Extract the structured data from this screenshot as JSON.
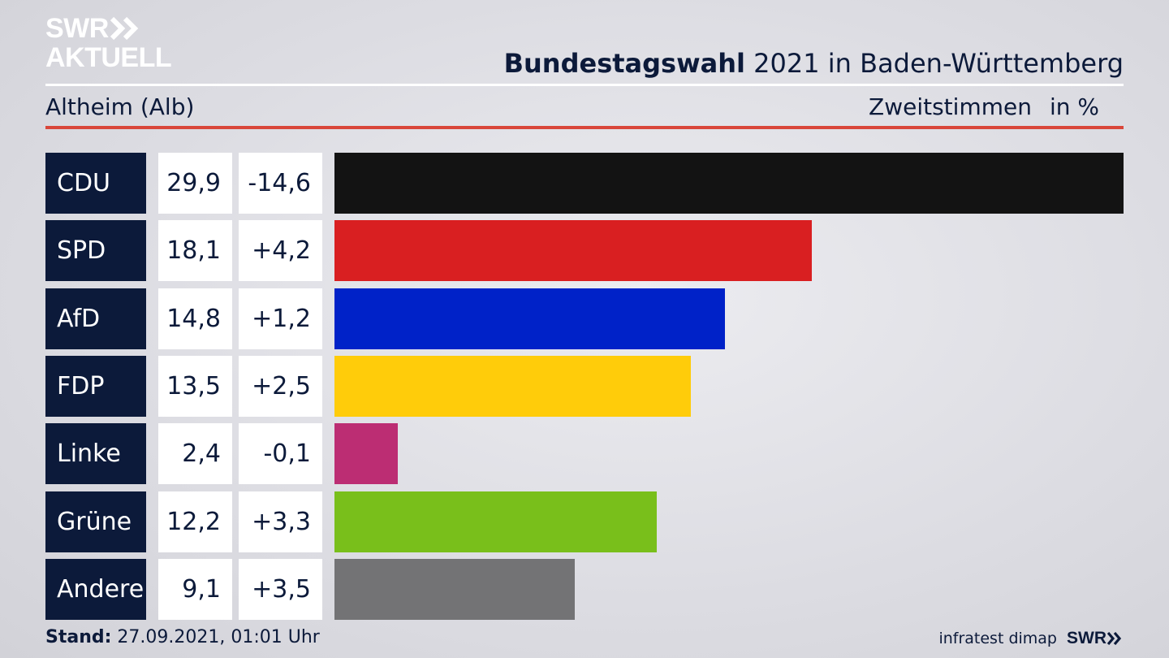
{
  "logo": {
    "line1": "SWR",
    "line2": "AKTUELL"
  },
  "header": {
    "title_bold": "Bundestagswahl",
    "title_rest": " 2021 in Baden-Württemberg",
    "location": "Altheim (Alb)",
    "measure": "Zweitstimmen",
    "unit": "in %"
  },
  "chart_data": {
    "type": "bar",
    "orientation": "horizontal",
    "title": "Bundestagswahl 2021 in Baden-Württemberg",
    "subtitle": "Altheim (Alb)",
    "ylabel": "Zweitstimmen in %",
    "xlim": [
      0,
      29.9
    ],
    "rows": [
      {
        "party": "CDU",
        "value": 29.9,
        "value_label": "29,9",
        "diff_label": "-14,6",
        "color": "#131313"
      },
      {
        "party": "SPD",
        "value": 18.1,
        "value_label": "18,1",
        "diff_label": "+4,2",
        "color": "#d91f21"
      },
      {
        "party": "AfD",
        "value": 14.8,
        "value_label": "14,8",
        "diff_label": "+1,2",
        "color": "#0022c8"
      },
      {
        "party": "FDP",
        "value": 13.5,
        "value_label": "13,5",
        "diff_label": "+2,5",
        "color": "#ffcc0a"
      },
      {
        "party": "Linke",
        "value": 2.4,
        "value_label": "2,4",
        "diff_label": "-0,1",
        "color": "#bc2d73"
      },
      {
        "party": "Grüne",
        "value": 12.2,
        "value_label": "12,2",
        "diff_label": "+3,3",
        "color": "#79bf1b"
      },
      {
        "party": "Andere",
        "value": 9.1,
        "value_label": "9,1",
        "diff_label": "+3,5",
        "color": "#737375"
      }
    ]
  },
  "footer": {
    "stand_label": "Stand:",
    "stand_value": " 27.09.2021, 01:01 Uhr",
    "source": "infratest dimap",
    "brand": "SWR"
  }
}
